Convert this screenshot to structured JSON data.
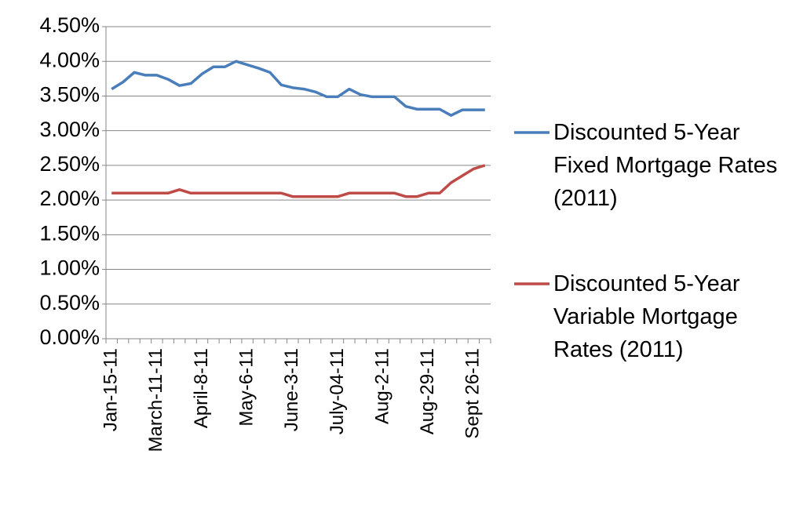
{
  "chart_data": {
    "type": "line",
    "categories": [
      "Jan-15-11",
      null,
      null,
      null,
      "March-11-11",
      null,
      null,
      null,
      "April-8-11",
      null,
      null,
      null,
      "May-6-11",
      null,
      null,
      null,
      "June-3-11",
      null,
      null,
      null,
      "July-04-11",
      null,
      null,
      null,
      "Aug-2-11",
      null,
      null,
      null,
      "Aug-29-11",
      null,
      null,
      null,
      "Sept 26-11",
      null
    ],
    "series": [
      {
        "name": "Discounted 5-Year Fixed Mortgage Rates (2011)",
        "color": "#4a7ebb",
        "values": [
          3.6,
          3.7,
          3.84,
          3.8,
          3.8,
          3.74,
          3.65,
          3.68,
          3.82,
          3.92,
          3.92,
          4.0,
          3.95,
          3.9,
          3.84,
          3.66,
          3.62,
          3.6,
          3.56,
          3.49,
          3.49,
          3.6,
          3.52,
          3.49,
          3.49,
          3.49,
          3.35,
          3.31,
          3.31,
          3.31,
          3.22,
          3.3,
          3.3,
          3.3
        ]
      },
      {
        "name": "Discounted 5-Year Variable Mortgage Rates (2011)",
        "color": "#be4b48",
        "values": [
          2.1,
          2.1,
          2.1,
          2.1,
          2.1,
          2.1,
          2.15,
          2.1,
          2.1,
          2.1,
          2.1,
          2.1,
          2.1,
          2.1,
          2.1,
          2.1,
          2.05,
          2.05,
          2.05,
          2.05,
          2.05,
          2.1,
          2.1,
          2.1,
          2.1,
          2.1,
          2.05,
          2.05,
          2.1,
          2.1,
          2.25,
          2.35,
          2.45,
          2.5
        ]
      }
    ],
    "ylim": [
      0,
      4.5
    ],
    "yticks": [
      {
        "value": 0,
        "label": "0.00%"
      },
      {
        "value": 0.5,
        "label": "0.50%"
      },
      {
        "value": 1,
        "label": "1.00%"
      },
      {
        "value": 1.5,
        "label": "1.50%"
      },
      {
        "value": 2,
        "label": "2.00%"
      },
      {
        "value": 2.5,
        "label": "2.50%"
      },
      {
        "value": 3,
        "label": "3.00%"
      },
      {
        "value": 3.5,
        "label": "3.50%"
      },
      {
        "value": 4,
        "label": "4.00%"
      },
      {
        "value": 4.5,
        "label": "4.50%"
      }
    ],
    "grid": true,
    "legend": "right"
  }
}
